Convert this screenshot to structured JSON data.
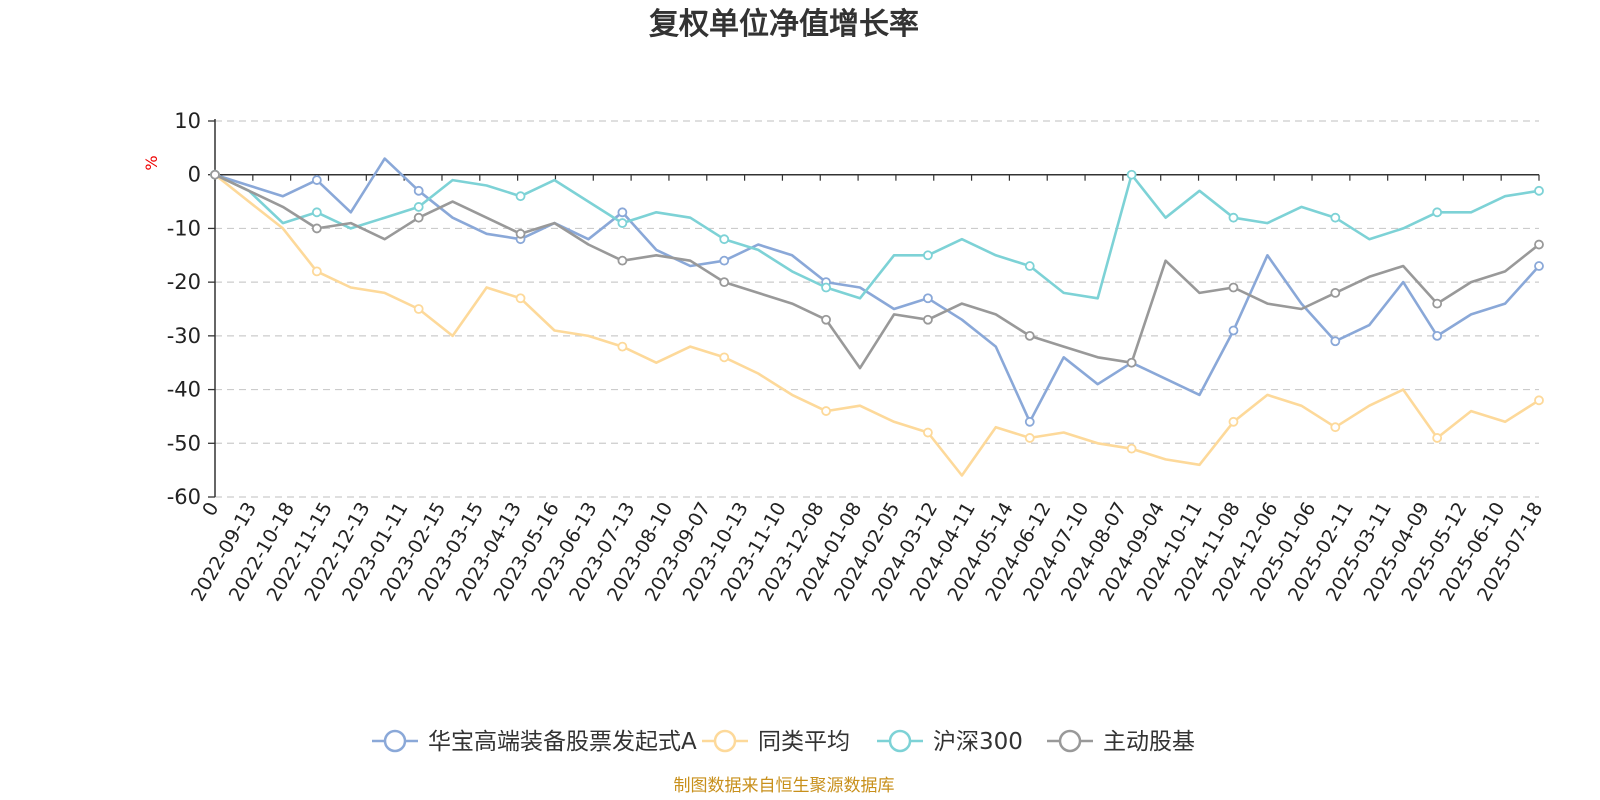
{
  "chart_data": {
    "type": "line",
    "title": "复权单位净值增长率",
    "ylabel": "%",
    "ylim": [
      -60,
      10
    ],
    "yticks": [
      10,
      0,
      -10,
      -20,
      -30,
      -40,
      -50,
      -60
    ],
    "x_labels": [
      "0",
      "2022-09-13",
      "2022-10-18",
      "2022-11-15",
      "2022-12-13",
      "2023-01-11",
      "2023-02-15",
      "2023-03-15",
      "2023-04-13",
      "2023-05-16",
      "2023-06-13",
      "2023-07-13",
      "2023-08-10",
      "2023-09-07",
      "2023-10-13",
      "2023-11-10",
      "2023-12-08",
      "2024-01-08",
      "2024-02-05",
      "2024-03-12",
      "2024-04-11",
      "2024-05-14",
      "2024-06-12",
      "2024-07-10",
      "2024-08-07",
      "2024-09-04",
      "2024-10-11",
      "2024-11-08",
      "2024-12-06",
      "2025-01-06",
      "2025-02-11",
      "2025-03-11",
      "2025-04-09",
      "2025-05-12",
      "2025-06-10",
      "2025-07-18"
    ],
    "grid": true,
    "legend_position": "bottom",
    "series": [
      {
        "name": "华宝高端装备股票发起式A",
        "color": "#8aa8d8",
        "values": [
          0,
          -2,
          -4,
          -1,
          -7,
          3,
          -3,
          -8,
          -11,
          -12,
          -9,
          -12,
          -7,
          -14,
          -17,
          -16,
          -13,
          -15,
          -20,
          -21,
          -25,
          -23,
          -27,
          -32,
          -46,
          -34,
          -39,
          -35,
          -38,
          -41,
          -29,
          -15,
          -24,
          -31,
          -28,
          -20,
          -30,
          -26,
          -24,
          -17
        ]
      },
      {
        "name": "同类平均",
        "color": "#fdd99a",
        "values": [
          0,
          -5,
          -10,
          -18,
          -21,
          -22,
          -25,
          -30,
          -21,
          -23,
          -29,
          -30,
          -32,
          -35,
          -32,
          -34,
          -37,
          -41,
          -44,
          -43,
          -46,
          -48,
          -56,
          -47,
          -49,
          -48,
          -50,
          -51,
          -53,
          -54,
          -46,
          -41,
          -43,
          -47,
          -43,
          -40,
          -49,
          -44,
          -46,
          -42
        ]
      },
      {
        "name": "沪深300",
        "color": "#7dd2d6",
        "values": [
          0,
          -3,
          -9,
          -7,
          -10,
          -8,
          -6,
          -1,
          -2,
          -4,
          -1,
          -5,
          -9,
          -7,
          -8,
          -12,
          -14,
          -18,
          -21,
          -23,
          -15,
          -15,
          -12,
          -15,
          -17,
          -22,
          -23,
          0,
          -8,
          -3,
          -8,
          -9,
          -6,
          -8,
          -12,
          -10,
          -7,
          -7,
          -4,
          -3
        ]
      },
      {
        "name": "主动股基",
        "color": "#999999",
        "values": [
          0,
          -3,
          -6,
          -10,
          -9,
          -12,
          -8,
          -5,
          -8,
          -11,
          -9,
          -13,
          -16,
          -15,
          -16,
          -20,
          -22,
          -24,
          -27,
          -36,
          -26,
          -27,
          -24,
          -26,
          -30,
          -32,
          -34,
          -35,
          -16,
          -22,
          -21,
          -24,
          -25,
          -22,
          -19,
          -17,
          -24,
          -20,
          -18,
          -13
        ]
      }
    ]
  },
  "legend": [
    {
      "label": "华宝高端装备股票发起式A",
      "color": "#8aa8d8"
    },
    {
      "label": "同类平均",
      "color": "#fdd99a"
    },
    {
      "label": "沪深300",
      "color": "#7dd2d6"
    },
    {
      "label": "主动股基",
      "color": "#999999"
    }
  ],
  "source_note": "制图数据来自恒生聚源数据库"
}
